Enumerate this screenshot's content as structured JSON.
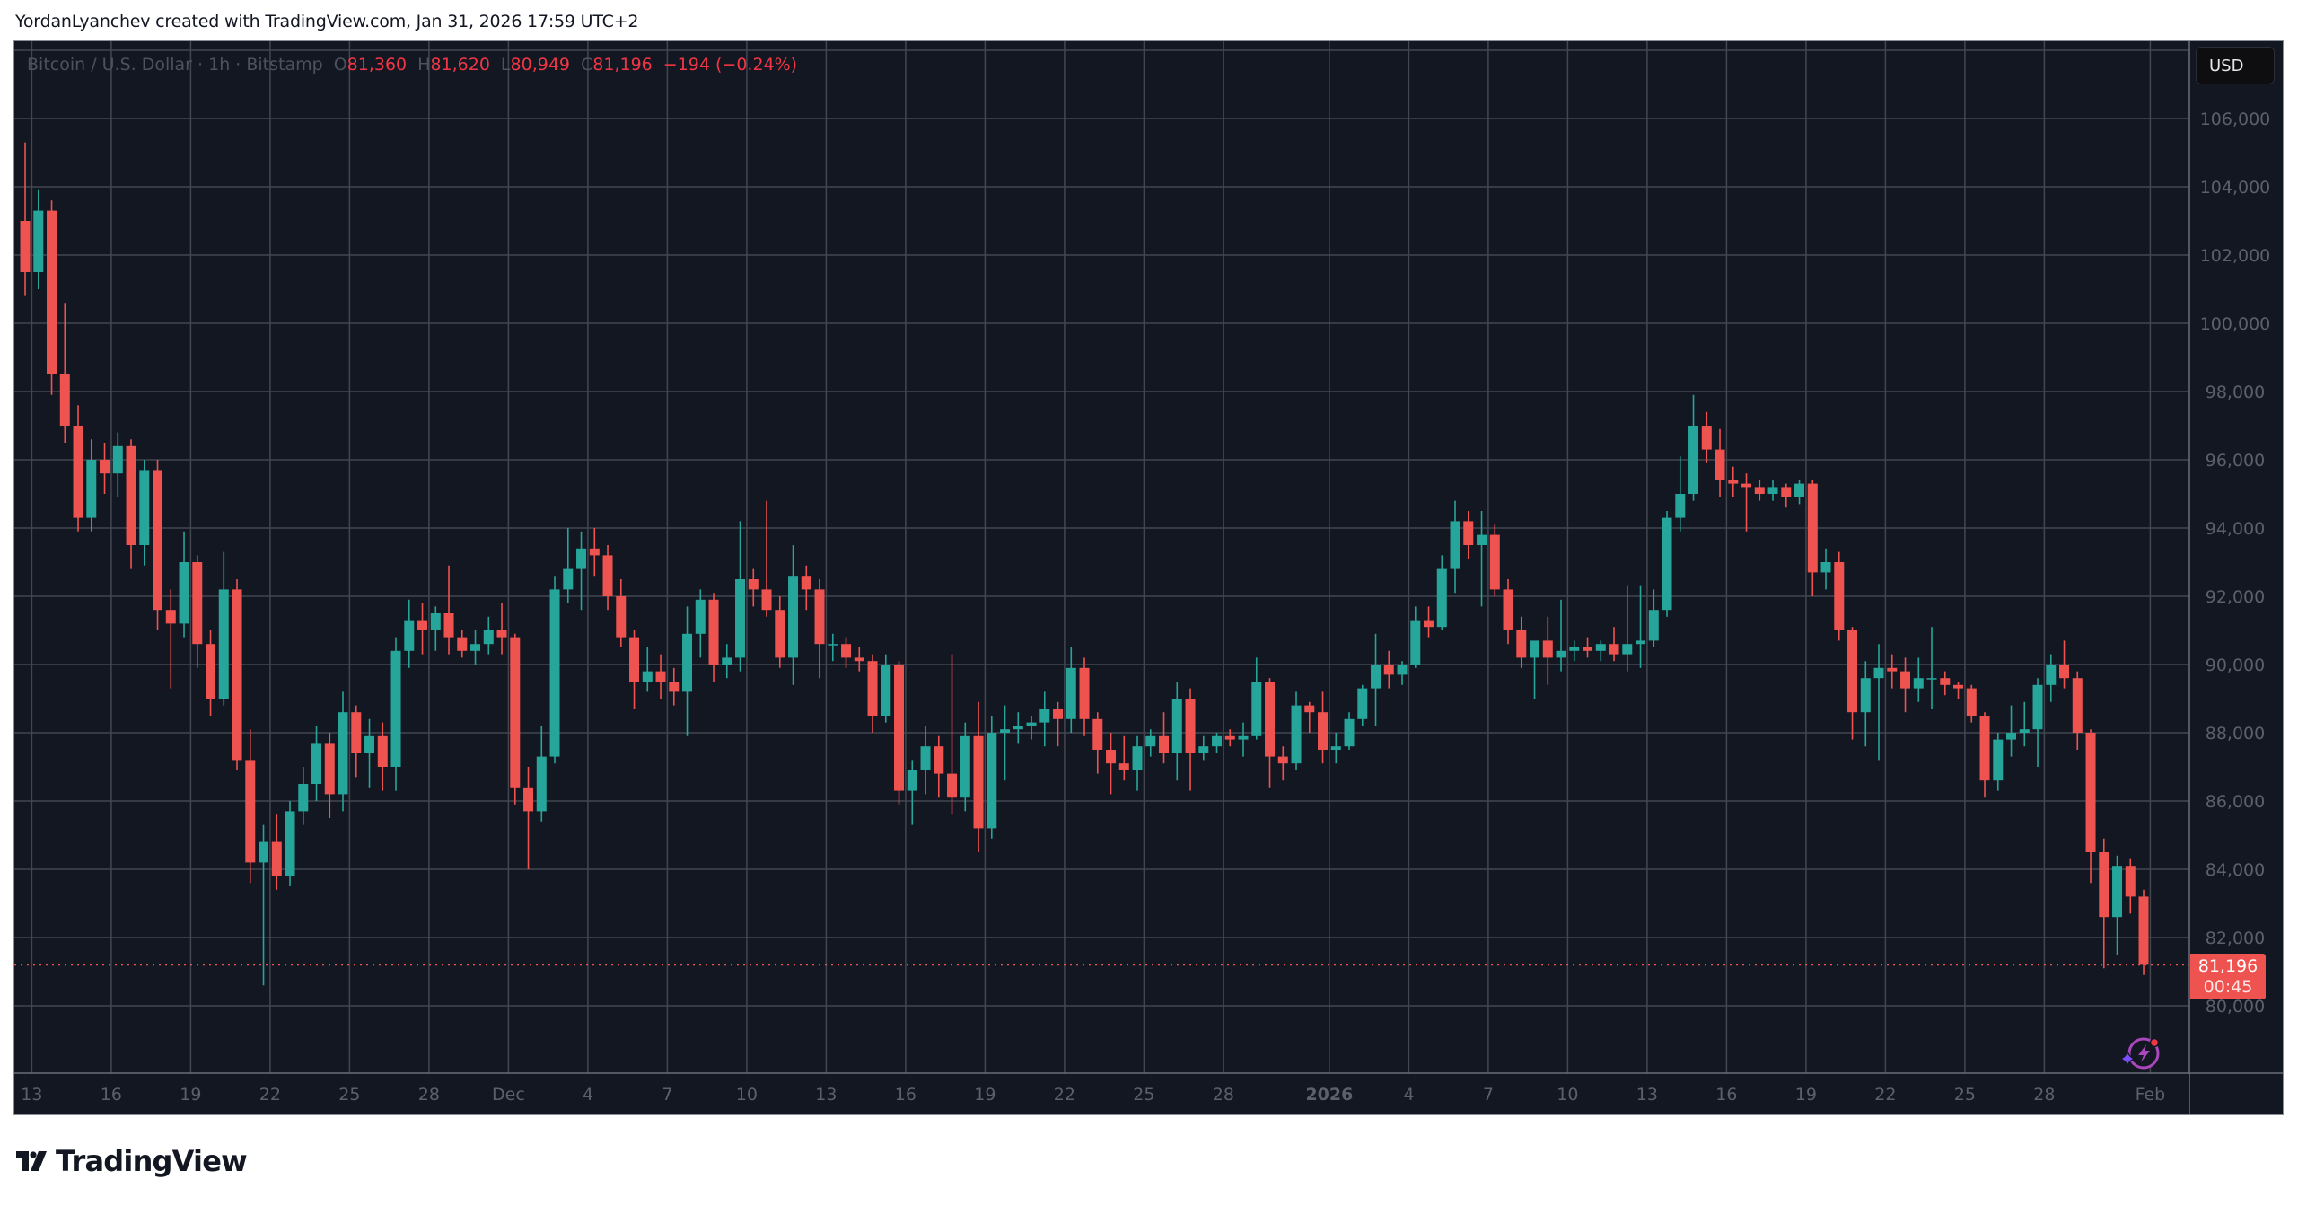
{
  "attribution": "YordanLyanchev created with TradingView.com, Jan 31, 2026 17:59 UTC+2",
  "legend": {
    "symbol": "Bitcoin / U.S. Dollar · 1h · Bitstamp",
    "o_label": "O",
    "open": "81,360",
    "h_label": "H",
    "high": "81,620",
    "l_label": "L",
    "low": "80,949",
    "c_label": "C",
    "close": "81,196",
    "change": "−194 (−0.24%)"
  },
  "currency_button": "USD",
  "last_price": {
    "value": "81,196",
    "countdown": "00:45"
  },
  "logo_text": "TradingView",
  "colors": {
    "up": "#26a69a",
    "down": "#ef5350",
    "background": "#131722",
    "grid": "#434651",
    "axis_text": "#5d606b",
    "last_price": "#ef5350"
  },
  "icons": {
    "assistant": "sparkle-lightning-icon",
    "logo": "tradingview-logo-icon"
  },
  "chart_data": {
    "type": "candlestick",
    "symbol": "Bitcoin / U.S. Dollar",
    "timeframe": "1h",
    "exchange": "Bitstamp",
    "candle_interval": "12h",
    "first_candle": "2025-11-12 12:00",
    "ylim": [
      78000,
      108000
    ],
    "y_ticks": [
      "80,000",
      "82,000",
      "84,000",
      "86,000",
      "88,000",
      "90,000",
      "92,000",
      "94,000",
      "96,000",
      "98,000",
      "100,000",
      "102,000",
      "104,000",
      "106,000"
    ],
    "x_ticks": [
      {
        "label": "13",
        "date": "2025-11-13"
      },
      {
        "label": "16",
        "date": "2025-11-16"
      },
      {
        "label": "19",
        "date": "2025-11-19"
      },
      {
        "label": "22",
        "date": "2025-11-22"
      },
      {
        "label": "25",
        "date": "2025-11-25"
      },
      {
        "label": "28",
        "date": "2025-11-28"
      },
      {
        "label": "Dec",
        "date": "2025-12-01"
      },
      {
        "label": "4",
        "date": "2025-12-04"
      },
      {
        "label": "7",
        "date": "2025-12-07"
      },
      {
        "label": "10",
        "date": "2025-12-10"
      },
      {
        "label": "13",
        "date": "2025-12-13"
      },
      {
        "label": "16",
        "date": "2025-12-16"
      },
      {
        "label": "19",
        "date": "2025-12-19"
      },
      {
        "label": "22",
        "date": "2025-12-22"
      },
      {
        "label": "25",
        "date": "2025-12-25"
      },
      {
        "label": "28",
        "date": "2025-12-28"
      },
      {
        "label": "2026",
        "date": "2026-01-01",
        "bold": true
      },
      {
        "label": "4",
        "date": "2026-01-04"
      },
      {
        "label": "7",
        "date": "2026-01-07"
      },
      {
        "label": "10",
        "date": "2026-01-10"
      },
      {
        "label": "13",
        "date": "2026-01-13"
      },
      {
        "label": "16",
        "date": "2026-01-16"
      },
      {
        "label": "19",
        "date": "2026-01-19"
      },
      {
        "label": "22",
        "date": "2026-01-22"
      },
      {
        "label": "25",
        "date": "2026-01-25"
      },
      {
        "label": "28",
        "date": "2026-01-28"
      },
      {
        "label": "Feb",
        "date": "2026-02-01"
      }
    ],
    "last_price": 81196,
    "grid": true,
    "ohlc": [
      [
        103000,
        105300,
        100800,
        101500
      ],
      [
        101500,
        103900,
        101000,
        103300
      ],
      [
        103300,
        103600,
        97900,
        98500
      ],
      [
        98500,
        100600,
        96500,
        97000
      ],
      [
        97000,
        97600,
        93900,
        94300
      ],
      [
        94300,
        96600,
        93900,
        96000
      ],
      [
        96000,
        96500,
        95000,
        95600
      ],
      [
        95600,
        96800,
        94900,
        96400
      ],
      [
        96400,
        96600,
        92800,
        93500
      ],
      [
        93500,
        96000,
        92900,
        95700
      ],
      [
        95700,
        96000,
        91000,
        91600
      ],
      [
        91600,
        92200,
        89300,
        91200
      ],
      [
        91200,
        93900,
        90800,
        93000
      ],
      [
        93000,
        93200,
        89900,
        90600
      ],
      [
        90600,
        91000,
        88500,
        89000
      ],
      [
        89000,
        93300,
        88800,
        92200
      ],
      [
        92200,
        92500,
        86900,
        87200
      ],
      [
        87200,
        88100,
        83600,
        84200
      ],
      [
        84200,
        85300,
        80600,
        84800
      ],
      [
        84800,
        85600,
        83400,
        83800
      ],
      [
        83800,
        86000,
        83500,
        85700
      ],
      [
        85700,
        87000,
        85300,
        86500
      ],
      [
        86500,
        88200,
        86000,
        87700
      ],
      [
        87700,
        88000,
        85500,
        86200
      ],
      [
        86200,
        89200,
        85700,
        88600
      ],
      [
        88600,
        88800,
        86700,
        87400
      ],
      [
        87400,
        88400,
        86400,
        87900
      ],
      [
        87900,
        88300,
        86300,
        87000
      ],
      [
        87000,
        90800,
        86300,
        90400
      ],
      [
        90400,
        91900,
        89900,
        91300
      ],
      [
        91300,
        91800,
        90300,
        91000
      ],
      [
        91000,
        91700,
        90400,
        91500
      ],
      [
        91500,
        92900,
        90300,
        90800
      ],
      [
        90800,
        91000,
        90200,
        90400
      ],
      [
        90400,
        91000,
        90000,
        90600
      ],
      [
        90600,
        91400,
        90300,
        91000
      ],
      [
        91000,
        91800,
        90300,
        90800
      ],
      [
        90800,
        90900,
        85900,
        86400
      ],
      [
        86400,
        87000,
        84000,
        85700
      ],
      [
        85700,
        88200,
        85400,
        87300
      ],
      [
        87300,
        92600,
        87100,
        92200
      ],
      [
        92200,
        94000,
        91800,
        92800
      ],
      [
        92800,
        93900,
        91600,
        93400
      ],
      [
        93400,
        94000,
        92600,
        93200
      ],
      [
        93200,
        93500,
        91600,
        92000
      ],
      [
        92000,
        92500,
        90500,
        90800
      ],
      [
        90800,
        91000,
        88700,
        89500
      ],
      [
        89500,
        90500,
        89200,
        89800
      ],
      [
        89800,
        90300,
        89000,
        89500
      ],
      [
        89500,
        89900,
        88800,
        89200
      ],
      [
        89200,
        91700,
        87900,
        90900
      ],
      [
        90900,
        92200,
        90200,
        91900
      ],
      [
        91900,
        92100,
        89500,
        90000
      ],
      [
        90000,
        90600,
        89600,
        90200
      ],
      [
        90200,
        94200,
        89800,
        92500
      ],
      [
        92500,
        92800,
        91700,
        92200
      ],
      [
        92200,
        94800,
        91400,
        91600
      ],
      [
        91600,
        92000,
        89900,
        90200
      ],
      [
        90200,
        93500,
        89400,
        92600
      ],
      [
        92600,
        92900,
        91600,
        92200
      ],
      [
        92200,
        92500,
        89600,
        90600
      ],
      [
        90600,
        90900,
        90100,
        90600
      ],
      [
        90600,
        90800,
        89900,
        90200
      ],
      [
        90200,
        90500,
        89800,
        90100
      ],
      [
        90100,
        90300,
        88000,
        88500
      ],
      [
        88500,
        90300,
        88300,
        90000
      ],
      [
        90000,
        90100,
        85900,
        86300
      ],
      [
        86300,
        87200,
        85300,
        86900
      ],
      [
        86900,
        88200,
        86200,
        87600
      ],
      [
        87600,
        87900,
        86100,
        86800
      ],
      [
        86800,
        90300,
        85600,
        86100
      ],
      [
        86100,
        88300,
        85700,
        87900
      ],
      [
        87900,
        88900,
        84500,
        85200
      ],
      [
        85200,
        88500,
        84900,
        88000
      ],
      [
        88000,
        88800,
        86600,
        88100
      ],
      [
        88100,
        88600,
        87700,
        88200
      ],
      [
        88200,
        88500,
        87800,
        88300
      ],
      [
        88300,
        89200,
        87600,
        88700
      ],
      [
        88700,
        88900,
        87600,
        88400
      ],
      [
        88400,
        90500,
        88000,
        89900
      ],
      [
        89900,
        90200,
        87900,
        88400
      ],
      [
        88400,
        88600,
        86800,
        87500
      ],
      [
        87500,
        88000,
        86200,
        87100
      ],
      [
        87100,
        87900,
        86600,
        86900
      ],
      [
        86900,
        87900,
        86300,
        87600
      ],
      [
        87600,
        88100,
        87300,
        87900
      ],
      [
        87900,
        88600,
        87100,
        87400
      ],
      [
        87400,
        89500,
        86600,
        89000
      ],
      [
        89000,
        89300,
        86300,
        87400
      ],
      [
        87400,
        87900,
        87200,
        87600
      ],
      [
        87600,
        88000,
        87400,
        87900
      ],
      [
        87900,
        88100,
        87600,
        87800
      ],
      [
        87800,
        88300,
        87300,
        87900
      ],
      [
        87900,
        90200,
        87800,
        89500
      ],
      [
        89500,
        89600,
        86400,
        87300
      ],
      [
        87300,
        87600,
        86600,
        87100
      ],
      [
        87100,
        89200,
        86900,
        88800
      ],
      [
        88800,
        88900,
        88000,
        88600
      ],
      [
        88600,
        89200,
        87100,
        87500
      ],
      [
        87500,
        88000,
        87100,
        87600
      ],
      [
        87600,
        88600,
        87500,
        88400
      ],
      [
        88400,
        89400,
        88200,
        89300
      ],
      [
        89300,
        90900,
        88200,
        90000
      ],
      [
        90000,
        90400,
        89300,
        89700
      ],
      [
        89700,
        90100,
        89400,
        90000
      ],
      [
        90000,
        91700,
        89900,
        91300
      ],
      [
        91300,
        91700,
        90800,
        91100
      ],
      [
        91100,
        93200,
        91000,
        92800
      ],
      [
        92800,
        94800,
        92100,
        94200
      ],
      [
        94200,
        94500,
        93100,
        93500
      ],
      [
        93500,
        94500,
        91700,
        93800
      ],
      [
        93800,
        94100,
        92000,
        92200
      ],
      [
        92200,
        92500,
        90600,
        91000
      ],
      [
        91000,
        91400,
        89900,
        90200
      ],
      [
        90200,
        90600,
        89000,
        90700
      ],
      [
        90700,
        91400,
        89400,
        90200
      ],
      [
        90200,
        91900,
        89800,
        90400
      ],
      [
        90400,
        90700,
        90100,
        90500
      ],
      [
        90500,
        90800,
        90200,
        90400
      ],
      [
        90400,
        90700,
        90100,
        90600
      ],
      [
        90600,
        91100,
        90100,
        90300
      ],
      [
        90300,
        92300,
        89800,
        90600
      ],
      [
        90600,
        92300,
        89900,
        90700
      ],
      [
        90700,
        92200,
        90500,
        91600
      ],
      [
        91600,
        94500,
        91400,
        94300
      ],
      [
        94300,
        96100,
        93900,
        95000
      ],
      [
        95000,
        97900,
        94800,
        97000
      ],
      [
        97000,
        97400,
        95900,
        96300
      ],
      [
        96300,
        96900,
        94900,
        95400
      ],
      [
        95400,
        95800,
        94900,
        95300
      ],
      [
        95300,
        95600,
        93900,
        95200
      ],
      [
        95200,
        95400,
        94800,
        95000
      ],
      [
        95000,
        95400,
        94800,
        95200
      ],
      [
        95200,
        95300,
        94600,
        94900
      ],
      [
        94900,
        95400,
        94700,
        95300
      ],
      [
        95300,
        95400,
        92000,
        92700
      ],
      [
        92700,
        93400,
        92200,
        93000
      ],
      [
        93000,
        93300,
        90700,
        91000
      ],
      [
        91000,
        91100,
        87800,
        88600
      ],
      [
        88600,
        90100,
        87600,
        89600
      ],
      [
        89600,
        90600,
        87200,
        89900
      ],
      [
        89900,
        90300,
        89300,
        89800
      ],
      [
        89800,
        90200,
        88600,
        89300
      ],
      [
        89300,
        90200,
        88900,
        89600
      ],
      [
        89600,
        91100,
        88700,
        89600
      ],
      [
        89600,
        89800,
        89100,
        89400
      ],
      [
        89400,
        89500,
        89000,
        89300
      ],
      [
        89300,
        89400,
        88300,
        88500
      ],
      [
        88500,
        88600,
        86100,
        86600
      ],
      [
        86600,
        88000,
        86300,
        87800
      ],
      [
        87800,
        88800,
        87300,
        88000
      ],
      [
        88000,
        88900,
        87600,
        88100
      ],
      [
        88100,
        89600,
        87000,
        89400
      ],
      [
        89400,
        90300,
        88900,
        90000
      ],
      [
        90000,
        90700,
        89300,
        89600
      ],
      [
        89600,
        89800,
        87500,
        88000
      ],
      [
        88000,
        88100,
        83600,
        84500
      ],
      [
        84500,
        84900,
        81100,
        82600
      ],
      [
        82600,
        84400,
        81500,
        84100
      ],
      [
        84100,
        84300,
        82700,
        83200
      ],
      [
        83200,
        83400,
        80900,
        81200
      ]
    ]
  }
}
